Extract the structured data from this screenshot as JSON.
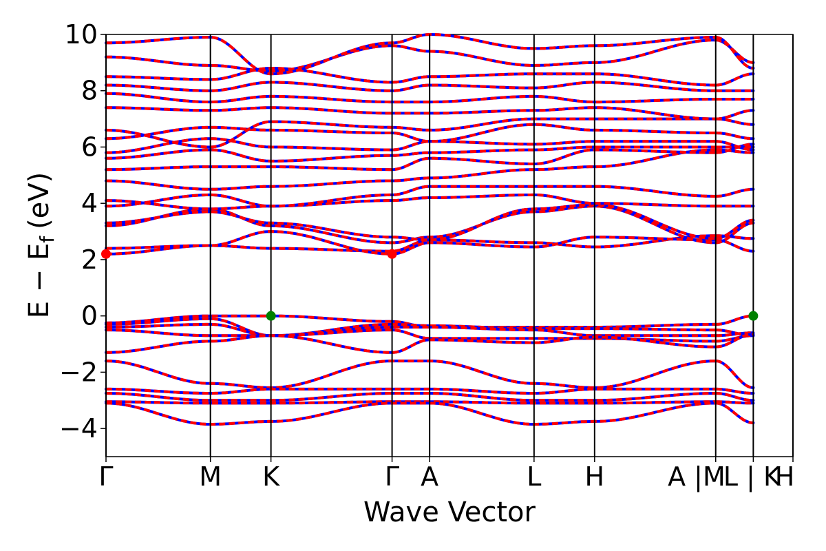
{
  "chart_data": {
    "type": "line",
    "title": "",
    "xlabel": "Wave Vector",
    "ylabel": "E − E_f (eV)",
    "ylabel_parts": {
      "main": "E − E",
      "sub": "f",
      "unit": "(eV)"
    },
    "ylim": [
      -5,
      10
    ],
    "yticks": [
      -4,
      -2,
      0,
      2,
      4,
      6,
      8,
      10
    ],
    "ytick_labels": [
      "−4",
      "−2",
      "0",
      "2",
      "4",
      "6",
      "8",
      "10"
    ],
    "grid": false,
    "legend": "none",
    "high_symmetry_points": [
      {
        "x": 0.0,
        "label": "Γ"
      },
      {
        "x": 1.0,
        "label": "M"
      },
      {
        "x": 1.58,
        "label": "K"
      },
      {
        "x": 2.74,
        "label": "Γ"
      },
      {
        "x": 3.1,
        "label": "A"
      },
      {
        "x": 4.1,
        "label": "L"
      },
      {
        "x": 4.68,
        "label": "H"
      },
      {
        "x": 5.84,
        "label": "A |M"
      },
      {
        "x": 6.2,
        "label": "L | K"
      },
      {
        "x": 6.58,
        "label": "H"
      }
    ],
    "segments": [
      [
        0.0,
        5.84
      ],
      [
        5.84,
        6.2
      ],
      [
        6.2,
        6.58
      ]
    ],
    "series_colors": {
      "spin_up": "#ff0000",
      "spin_down": "#0000ff"
    },
    "markers": [
      {
        "x": 0.0,
        "y": 2.2,
        "color": "#ff0000",
        "role": "CBM"
      },
      {
        "x": 2.74,
        "y": 2.2,
        "color": "#ff0000",
        "role": "CBM"
      },
      {
        "x": 1.58,
        "y": 0.0,
        "color": "#008000",
        "role": "VBM"
      },
      {
        "x": 6.2,
        "y": 0.0,
        "color": "#008000",
        "role": "VBM"
      }
    ],
    "bands": [
      {
        "y": [
          2.2,
          2.5,
          2.4,
          2.3,
          2.7,
          2.6,
          2.45,
          2.85,
          2.75
        ],
        "kind": "conduction"
      },
      {
        "y": [
          2.4,
          2.5,
          3.0,
          2.2,
          2.6,
          2.45,
          2.8,
          2.7,
          2.3
        ],
        "kind": "conduction"
      },
      {
        "y": [
          3.2,
          3.8,
          3.2,
          2.6,
          2.8,
          3.7,
          3.9,
          2.6,
          3.3
        ],
        "kind": "conduction"
      },
      {
        "y": [
          3.3,
          3.7,
          3.3,
          2.8,
          2.7,
          3.8,
          3.95,
          2.75,
          3.4
        ],
        "kind": "conduction"
      },
      {
        "y": [
          3.9,
          4.3,
          3.9,
          4.1,
          4.2,
          4.3,
          4.0,
          3.9,
          3.9
        ],
        "kind": "conduction"
      },
      {
        "y": [
          4.1,
          3.8,
          3.9,
          4.3,
          4.6,
          4.6,
          4.6,
          4.25,
          4.5
        ],
        "kind": "conduction"
      },
      {
        "y": [
          4.8,
          4.5,
          4.6,
          4.8,
          4.9,
          5.2,
          5.3,
          5.9,
          5.8
        ],
        "kind": "conduction"
      },
      {
        "y": [
          5.2,
          5.3,
          5.3,
          5.2,
          5.6,
          5.4,
          5.9,
          5.8,
          6.1
        ],
        "kind": "conduction"
      },
      {
        "y": [
          5.6,
          5.9,
          5.5,
          5.7,
          5.8,
          5.9,
          6.0,
          6.0,
          6.0
        ],
        "kind": "conduction"
      },
      {
        "y": [
          5.8,
          6.3,
          6.0,
          5.9,
          6.2,
          6.1,
          6.2,
          6.2,
          5.9
        ],
        "kind": "conduction"
      },
      {
        "y": [
          6.3,
          6.7,
          6.6,
          6.5,
          6.2,
          6.8,
          6.6,
          6.5,
          6.3
        ],
        "kind": "conduction"
      },
      {
        "y": [
          6.6,
          6.0,
          6.9,
          6.7,
          6.6,
          7.0,
          7.0,
          7.0,
          6.8
        ],
        "kind": "conduction"
      },
      {
        "y": [
          7.4,
          7.3,
          7.4,
          7.2,
          7.2,
          7.3,
          7.4,
          7.0,
          7.3
        ],
        "kind": "conduction"
      },
      {
        "y": [
          7.9,
          7.6,
          7.8,
          7.6,
          7.6,
          7.8,
          7.6,
          7.7,
          7.7
        ],
        "kind": "conduction"
      },
      {
        "y": [
          8.2,
          8.0,
          8.3,
          8.0,
          8.2,
          8.1,
          8.3,
          8.0,
          8.0
        ],
        "kind": "conduction"
      },
      {
        "y": [
          8.5,
          8.4,
          8.8,
          8.3,
          8.5,
          8.6,
          8.6,
          8.2,
          8.6
        ],
        "kind": "conduction"
      },
      {
        "y": [
          9.2,
          8.9,
          8.7,
          9.6,
          9.4,
          8.9,
          9.0,
          9.8,
          9.0
        ],
        "kind": "conduction"
      },
      {
        "y": [
          9.7,
          9.9,
          8.6,
          9.7,
          10.0,
          9.5,
          9.6,
          9.9,
          8.8
        ],
        "kind": "conduction"
      },
      {
        "y": [
          -0.25,
          0.0,
          0.0,
          -0.2,
          -0.4,
          -0.4,
          -0.4,
          -0.3,
          0.0
        ],
        "kind": "valence"
      },
      {
        "y": [
          -0.3,
          -0.1,
          -0.7,
          -0.3,
          -0.35,
          -0.45,
          -0.45,
          -0.5,
          -0.7
        ],
        "kind": "valence"
      },
      {
        "y": [
          -0.4,
          -0.3,
          -0.7,
          -0.4,
          -0.4,
          -0.5,
          -0.7,
          -0.7,
          -0.6
        ],
        "kind": "valence"
      },
      {
        "y": [
          -0.5,
          -0.7,
          -0.7,
          -0.5,
          -0.8,
          -0.8,
          -0.8,
          -0.9,
          -0.7
        ],
        "kind": "valence"
      },
      {
        "y": [
          -1.3,
          -0.9,
          -0.7,
          -1.3,
          -0.85,
          -0.95,
          -0.75,
          -1.1,
          -0.65
        ],
        "kind": "valence"
      },
      {
        "y": [
          -1.6,
          -2.4,
          -2.55,
          -1.6,
          -1.6,
          -2.4,
          -2.55,
          -1.6,
          -2.55
        ],
        "kind": "valence"
      },
      {
        "y": [
          -2.6,
          -2.75,
          -2.6,
          -2.6,
          -2.6,
          -2.75,
          -2.6,
          -2.6,
          -2.75
        ],
        "kind": "valence"
      },
      {
        "y": [
          -2.75,
          -3.0,
          -3.0,
          -2.75,
          -2.75,
          -3.0,
          -3.0,
          -2.75,
          -3.0
        ],
        "kind": "valence"
      },
      {
        "y": [
          -3.05,
          -3.1,
          -3.1,
          -3.05,
          -3.05,
          -3.1,
          -3.1,
          -3.05,
          -3.1
        ],
        "kind": "valence"
      },
      {
        "y": [
          -3.1,
          -3.85,
          -3.75,
          -3.1,
          -3.1,
          -3.85,
          -3.75,
          -3.1,
          -3.8
        ],
        "kind": "valence"
      }
    ]
  }
}
